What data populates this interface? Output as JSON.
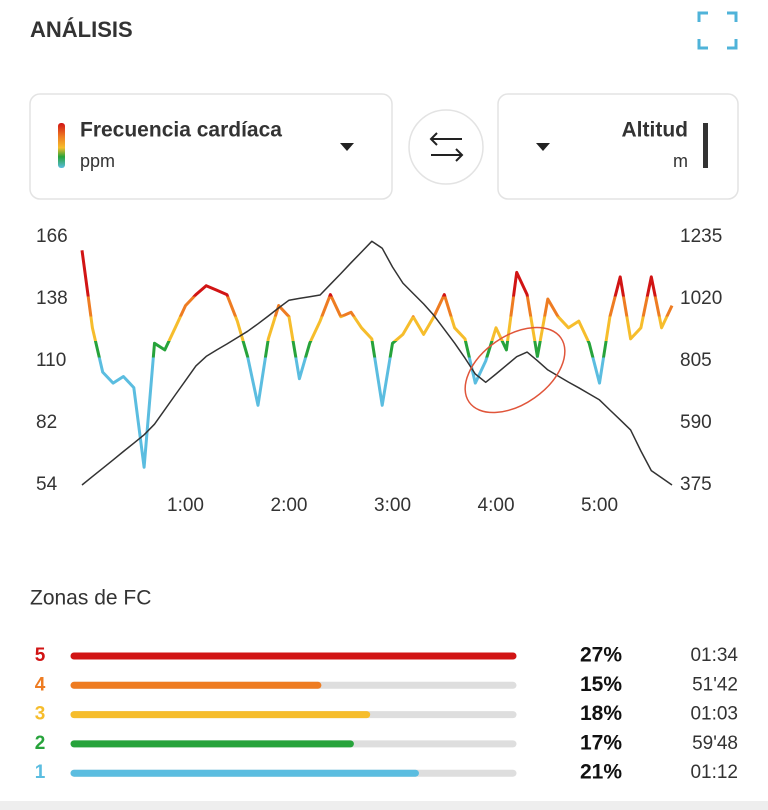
{
  "header": {
    "title": "ANÁLISIS"
  },
  "chart_data": {
    "type": "line",
    "x": [
      0,
      0.1,
      0.2,
      0.3,
      0.4,
      0.5,
      0.6,
      0.7,
      0.8,
      0.9,
      1,
      1.1,
      1.2,
      1.3,
      1.4,
      1.5,
      1.6,
      1.7,
      1.8,
      1.9,
      2,
      2.1,
      2.2,
      2.3,
      2.4,
      2.5,
      2.6,
      2.7,
      2.8,
      2.9,
      3,
      3.1,
      3.2,
      3.3,
      3.4,
      3.5,
      3.6,
      3.7,
      3.8,
      3.9,
      4,
      4.1,
      4.2,
      4.3,
      4.4,
      4.5,
      4.6,
      4.7,
      4.8,
      4.9,
      5,
      5.1,
      5.2,
      5.3,
      5.4,
      5.5,
      5.6,
      5.7
    ],
    "series": [
      {
        "name": "Frecuencia cardíaca",
        "unit": "ppm",
        "values": [
          160,
          125,
          105,
          100,
          103,
          98,
          62,
          118,
          115,
          125,
          135,
          140,
          144,
          142,
          140,
          128,
          112,
          90,
          120,
          135,
          130,
          102,
          118,
          128,
          140,
          130,
          132,
          125,
          120,
          90,
          118,
          122,
          130,
          122,
          130,
          140,
          125,
          120,
          100,
          110,
          125,
          115,
          150,
          140,
          112,
          138,
          130,
          125,
          128,
          118,
          100,
          130,
          148,
          120,
          125,
          148,
          125,
          135
        ]
      },
      {
        "name": "Altitud",
        "unit": "m",
        "axis": "y2",
        "color": "#333333",
        "values": [
          375,
          404,
          433,
          462,
          491,
          520,
          549,
          586,
          636,
          687,
          737,
          788,
          821,
          843,
          864,
          886,
          908,
          934,
          961,
          989,
          1016,
          1022,
          1028,
          1034,
          1071,
          1108,
          1146,
          1183,
          1220,
          1196,
          1131,
          1075,
          1039,
          1003,
          963,
          915,
          867,
          815,
          760,
          731,
          760,
          790,
          820,
          836,
          806,
          774,
          753,
          732,
          712,
          691,
          670,
          635,
          601,
          566,
          493,
          425,
          400,
          375
        ]
      }
    ],
    "xlim": [
      0,
      5.7
    ],
    "xticks": [
      {
        "value": 1,
        "label": "1:00"
      },
      {
        "value": 2,
        "label": "2:00"
      },
      {
        "value": 3,
        "label": "3:00"
      },
      {
        "value": 4,
        "label": "4:00"
      },
      {
        "value": 5,
        "label": "5:00"
      }
    ],
    "ylim": [
      54,
      166
    ],
    "yticks": [
      54,
      82,
      110,
      138,
      166
    ],
    "y2lim": [
      375,
      1235
    ],
    "y2ticks": [
      375,
      590,
      805,
      1020,
      1235
    ]
  },
  "zones": {
    "title": "Zonas de FC",
    "numbers": [
      "5",
      "4",
      "3",
      "2",
      "1"
    ],
    "colors": [
      "#d11414",
      "#ee7c22",
      "#f6bd2c",
      "#27a33b",
      "#5bbde0"
    ],
    "values": [
      27,
      15,
      18,
      17,
      21
    ],
    "value_labels": [
      "27%",
      "15%",
      "18%",
      "17%",
      "21%"
    ],
    "times": [
      "01:34",
      "51'42",
      "01:03",
      "59'48",
      "01:12"
    ]
  }
}
